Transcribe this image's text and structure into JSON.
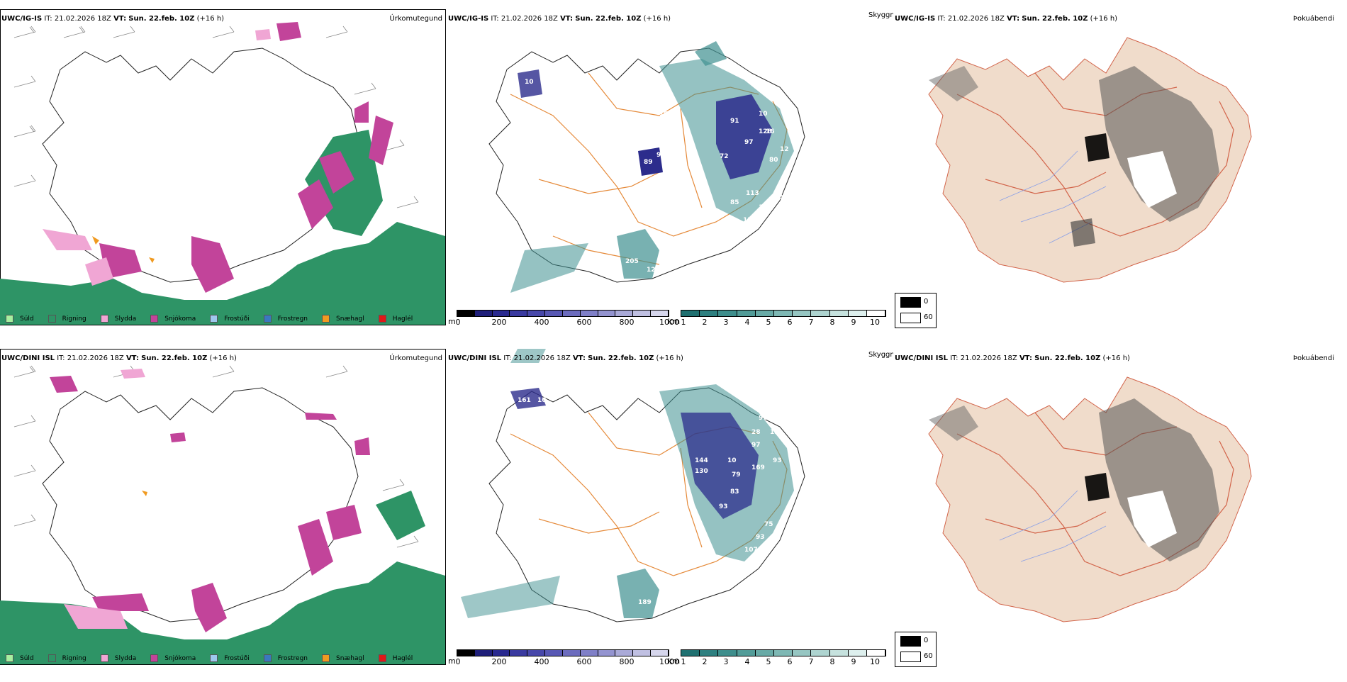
{
  "rows": [
    {
      "model": "UWC/IG-IS",
      "it_label": "IT:",
      "it_value": "21.02.2026 18Z",
      "vt_label": "VT:",
      "vt_value": "Sun. 22.feb. 10Z",
      "lead": "(+16 h)",
      "var_precip": "Úrkomutegund",
      "var_vis": "Skyggni",
      "var_cloud": "Þokuábendi",
      "top_values": [
        "91",
        "97",
        "10",
        "15",
        "10",
        "10",
        "10",
        "72",
        "89",
        "94",
        "16",
        "12",
        "80",
        "128",
        "113",
        "85",
        "123",
        "15",
        "70",
        "16",
        "205",
        "12"
      ]
    },
    {
      "model": "UWC/DINI ISL",
      "it_label": "IT:",
      "it_value": "21.02.2026 18Z",
      "vt_label": "VT:",
      "vt_value": "Sun. 22.feb. 10Z",
      "lead": "(+16 h)",
      "var_precip": "Úrkomutegund",
      "var_vis": "Skyggni",
      "var_cloud": "Þokuábendi",
      "top_values": [
        "161",
        "10",
        "90",
        "28",
        "13",
        "97",
        "144",
        "130",
        "10",
        "79",
        "169",
        "93",
        "83",
        "98",
        "10",
        "93",
        "75",
        "93",
        "107",
        "178",
        "189"
      ]
    }
  ],
  "precip_legend": [
    {
      "label": "Súld",
      "color": "#a8f0a0"
    },
    {
      "label": "Rigning",
      "color": "#2e9466"
    },
    {
      "label": "Slydda",
      "color": "#f0a6d4"
    },
    {
      "label": "Snjókoma",
      "color": "#c2449a"
    },
    {
      "label": "Frostúði",
      "color": "#9ec8ee"
    },
    {
      "label": "Frostregn",
      "color": "#3a78c0"
    },
    {
      "label": "Snæhagl",
      "color": "#f09a20"
    },
    {
      "label": "Haglél",
      "color": "#e01818"
    }
  ],
  "height_scale": {
    "unit": "m",
    "ticks": [
      "0",
      "200",
      "400",
      "600",
      "800",
      "1000"
    ],
    "colors": [
      "#000000",
      "#1f1f7a",
      "#2a2a90",
      "#3a3aa0",
      "#4848aa",
      "#5858b4",
      "#6c6cbe",
      "#8080c8",
      "#9494d0",
      "#aaaad8",
      "#c0c0e2",
      "#d6d6ec"
    ]
  },
  "vis_scale": {
    "unit": "km",
    "ticks": [
      "1",
      "2",
      "3",
      "4",
      "5",
      "6",
      "7",
      "8",
      "9",
      "10"
    ],
    "colors": [
      "#1f7070",
      "#2e8080",
      "#3e8e8c",
      "#529c98",
      "#68aaa6",
      "#7eb8b4",
      "#96c6c2",
      "#aed4d0",
      "#c6e2de",
      "#def0ee",
      "#ffffff"
    ]
  },
  "cloud_key": {
    "values": [
      "0",
      "60"
    ]
  },
  "colors": {
    "rain": "#2e9466",
    "snow": "#c2449a",
    "sleet": "#f0a6d4",
    "snow_pellets": "#f09a20",
    "fog_teal": "#3e9090",
    "fog_blue": "#2c2c8c",
    "road_orange": "#e58a3a",
    "land_beige": "#f0dccb"
  }
}
